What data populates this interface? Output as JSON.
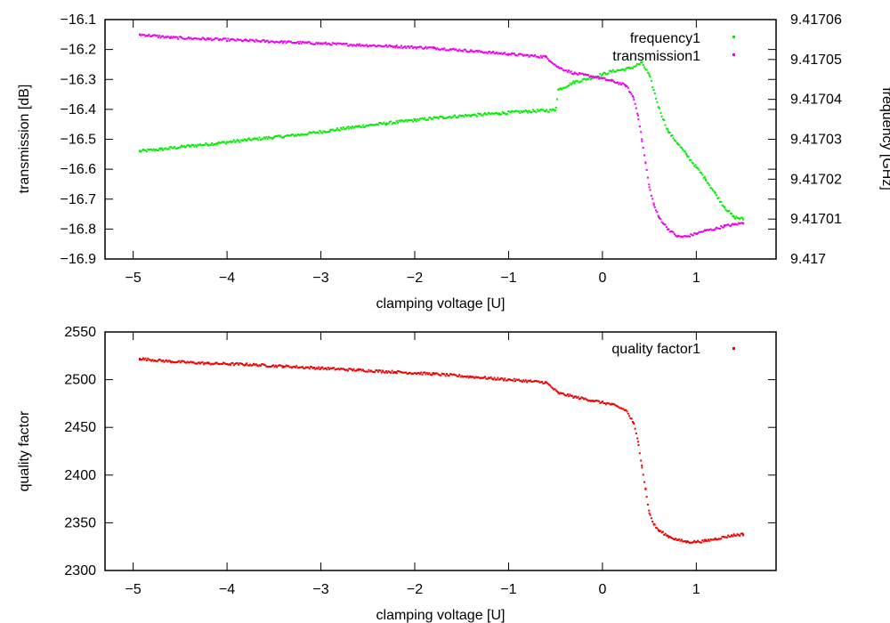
{
  "chart_data": [
    {
      "type": "scatter",
      "xlabel": "clamping voltage [U]",
      "ylabel": "transmission [dB]",
      "y2label": "frequency [GHz]",
      "xlim": [
        -5.3,
        1.85
      ],
      "ylim": [
        -16.9,
        -16.1
      ],
      "y2lim": [
        9.417,
        9.41706
      ],
      "x_ticks": [
        -5,
        -4,
        -3,
        -2,
        -1,
        0,
        1
      ],
      "x_tick_labels": [
        "−5",
        "−4",
        "−3",
        "−2",
        "−1",
        "0",
        "1"
      ],
      "y_ticks": [
        -16.1,
        -16.2,
        -16.3,
        -16.4,
        -16.5,
        -16.6,
        -16.7,
        -16.8,
        -16.9
      ],
      "y_tick_labels": [
        "−16.1",
        "−16.2",
        "−16.3",
        "−16.4",
        "−16.5",
        "−16.6",
        "−16.7",
        "−16.8",
        "−16.9"
      ],
      "y2_ticks": [
        9.41706,
        9.41705,
        9.41704,
        9.41703,
        9.41702,
        9.41701,
        9.417
      ],
      "y2_tick_labels": [
        "9.41706",
        "9.41705",
        "9.41704",
        "9.41703",
        "9.41702",
        "9.41701",
        "9.417"
      ],
      "legend_position": "top-right",
      "series": [
        {
          "name": "frequency1",
          "axis": "y2",
          "color": "#00ee00",
          "x": [
            -4.93,
            -4.7,
            -4.4,
            -4.1,
            -3.8,
            -3.5,
            -3.2,
            -2.9,
            -2.6,
            -2.3,
            -2.0,
            -1.7,
            -1.4,
            -1.1,
            -0.8,
            -0.5,
            -0.47,
            -0.3,
            -0.1,
            0.1,
            0.3,
            0.42,
            0.5,
            0.6,
            0.7,
            0.8,
            0.9,
            1.0,
            1.1,
            1.2,
            1.3,
            1.4,
            1.5
          ],
          "y": [
            9.417027,
            9.4170275,
            9.4170283,
            9.417029,
            9.4170298,
            9.4170305,
            9.4170312,
            9.4170322,
            9.4170332,
            9.417034,
            9.4170348,
            9.4170355,
            9.417036,
            9.4170365,
            9.417037,
            9.4170373,
            9.4170424,
            9.4170443,
            9.4170455,
            9.417047,
            9.4170478,
            9.4170492,
            9.417046,
            9.417038,
            9.417032,
            9.417029,
            9.417026,
            9.417023,
            9.41702,
            9.4170165,
            9.417013,
            9.4170105,
            9.41701
          ]
        },
        {
          "name": "transmission1",
          "axis": "y",
          "color": "#ee00ee",
          "x": [
            -4.93,
            -4.6,
            -4.2,
            -3.8,
            -3.4,
            -3.0,
            -2.6,
            -2.2,
            -1.8,
            -1.4,
            -1.0,
            -0.6,
            -0.47,
            -0.3,
            -0.1,
            0.1,
            0.25,
            0.33,
            0.38,
            0.42,
            0.46,
            0.5,
            0.55,
            0.6,
            0.7,
            0.8,
            0.9,
            1.0,
            1.1,
            1.2,
            1.3,
            1.4,
            1.5
          ],
          "y": [
            -16.15,
            -16.16,
            -16.165,
            -16.17,
            -16.175,
            -16.18,
            -16.185,
            -16.19,
            -16.195,
            -16.205,
            -16.215,
            -16.225,
            -16.26,
            -16.28,
            -16.29,
            -16.305,
            -16.32,
            -16.36,
            -16.42,
            -16.5,
            -16.58,
            -16.66,
            -16.72,
            -16.76,
            -16.8,
            -16.825,
            -16.825,
            -16.815,
            -16.805,
            -16.8,
            -16.79,
            -16.785,
            -16.78
          ]
        }
      ]
    },
    {
      "type": "scatter",
      "xlabel": "clamping voltage [U]",
      "ylabel": "quality factor",
      "xlim": [
        -5.3,
        1.85
      ],
      "ylim": [
        2300,
        2550
      ],
      "x_ticks": [
        -5,
        -4,
        -3,
        -2,
        -1,
        0,
        1
      ],
      "x_tick_labels": [
        "−5",
        "−4",
        "−3",
        "−2",
        "−1",
        "0",
        "1"
      ],
      "y_ticks": [
        2550,
        2500,
        2450,
        2400,
        2350,
        2300
      ],
      "y_tick_labels": [
        "2550",
        "2500",
        "2450",
        "2400",
        "2350",
        "2300"
      ],
      "legend_position": "top-right",
      "series": [
        {
          "name": "quality factor1",
          "color": "#ee0000",
          "x": [
            -4.93,
            -4.6,
            -4.2,
            -3.8,
            -3.4,
            -3.0,
            -2.6,
            -2.2,
            -1.8,
            -1.4,
            -1.0,
            -0.6,
            -0.47,
            -0.3,
            -0.1,
            0.1,
            0.25,
            0.33,
            0.38,
            0.42,
            0.46,
            0.5,
            0.55,
            0.6,
            0.7,
            0.8,
            0.9,
            1.0,
            1.1,
            1.2,
            1.3,
            1.4,
            1.5
          ],
          "y": [
            2522,
            2519,
            2517,
            2516,
            2514,
            2512,
            2510,
            2508,
            2506,
            2503,
            2500,
            2497,
            2486,
            2482,
            2478,
            2474,
            2468,
            2455,
            2435,
            2410,
            2385,
            2360,
            2348,
            2342,
            2336,
            2332,
            2330,
            2330,
            2331,
            2333,
            2335,
            2337,
            2338
          ]
        }
      ]
    }
  ]
}
